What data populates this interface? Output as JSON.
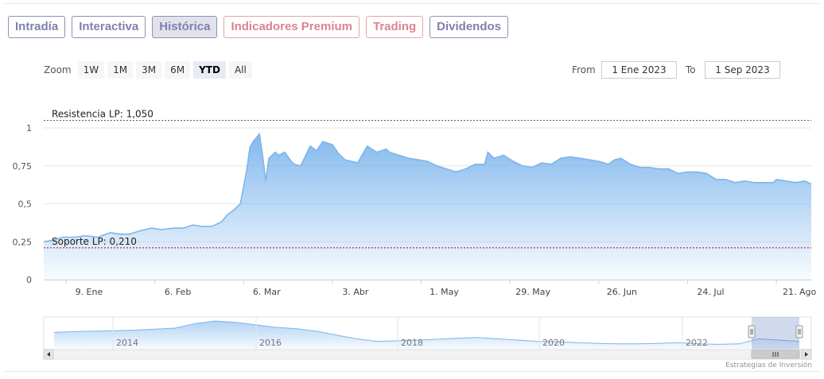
{
  "tabs": [
    {
      "label": "Intradía",
      "active": false,
      "premium": false
    },
    {
      "label": "Interactiva",
      "active": false,
      "premium": false
    },
    {
      "label": "Histórica",
      "active": true,
      "premium": false
    },
    {
      "label": "Indicadores Premium",
      "active": false,
      "premium": true
    },
    {
      "label": "Trading",
      "active": false,
      "premium": true
    },
    {
      "label": "Dividendos",
      "active": false,
      "premium": false
    }
  ],
  "zoom": {
    "label": "Zoom",
    "buttons": [
      "1W",
      "1M",
      "3M",
      "6M",
      "YTD",
      "All"
    ],
    "active": "YTD"
  },
  "range": {
    "from_label": "From",
    "from_value": "1 Ene 2023",
    "to_label": "To",
    "to_value": "1 Sep 2023"
  },
  "credits": "Estrategias de Inversión",
  "colors": {
    "series": "#7cb5ec",
    "resistance": "#2e7d32",
    "support": "#8b1a1a",
    "tab_border": "#8f8fb8",
    "premium_border": "#e8a3ab"
  },
  "chart_data": {
    "type": "area",
    "title": "",
    "xlabel": "",
    "ylabel": "",
    "ylim": [
      0,
      1
    ],
    "yticks": [
      0,
      0.25,
      0.5,
      0.75,
      1
    ],
    "ytick_labels": [
      "0",
      "0,25",
      "0,5",
      "0,75",
      "1"
    ],
    "xlim": [
      "2023-01-02",
      "2023-09-01"
    ],
    "x_ticks": [
      {
        "date": "2023-01-09",
        "label": "9. Ene"
      },
      {
        "date": "2023-02-06",
        "label": "6. Feb"
      },
      {
        "date": "2023-03-06",
        "label": "6. Mar"
      },
      {
        "date": "2023-04-03",
        "label": "3. Abr"
      },
      {
        "date": "2023-05-01",
        "label": "1. May"
      },
      {
        "date": "2023-05-29",
        "label": "29. May"
      },
      {
        "date": "2023-06-26",
        "label": "26. Jun"
      },
      {
        "date": "2023-07-24",
        "label": "24. Jul"
      },
      {
        "date": "2023-08-21",
        "label": "21. Ago"
      }
    ],
    "plot_lines": [
      {
        "label": "Resistencia LP: 1,050",
        "value": 1.05
      },
      {
        "label": "Soporte LP: 0,210",
        "value": 0.21
      }
    ],
    "series": [
      {
        "x": [
          "2023-01-02",
          "2023-01-05",
          "2023-01-08",
          "2023-01-12",
          "2023-01-15",
          "2023-01-19",
          "2023-01-23",
          "2023-01-26",
          "2023-01-29",
          "2023-02-01",
          "2023-02-05",
          "2023-02-08",
          "2023-02-12",
          "2023-02-15",
          "2023-02-18",
          "2023-02-21",
          "2023-02-24",
          "2023-02-27",
          "2023-03-01",
          "2023-03-03",
          "2023-03-05",
          "2023-03-07",
          "2023-03-08",
          "2023-03-09",
          "2023-03-11",
          "2023-03-12",
          "2023-03-13",
          "2023-03-14",
          "2023-03-16",
          "2023-03-17",
          "2023-03-19",
          "2023-03-21",
          "2023-03-22",
          "2023-03-24",
          "2023-03-27",
          "2023-03-29",
          "2023-03-31",
          "2023-04-03",
          "2023-04-05",
          "2023-04-07",
          "2023-04-09",
          "2023-04-11",
          "2023-04-14",
          "2023-04-17",
          "2023-04-20",
          "2023-04-21",
          "2023-04-24",
          "2023-04-27",
          "2023-04-30",
          "2023-05-03",
          "2023-05-06",
          "2023-05-09",
          "2023-05-12",
          "2023-05-15",
          "2023-05-18",
          "2023-05-21",
          "2023-05-22",
          "2023-05-24",
          "2023-05-27",
          "2023-05-30",
          "2023-06-02",
          "2023-06-05",
          "2023-06-08",
          "2023-06-11",
          "2023-06-14",
          "2023-06-17",
          "2023-06-20",
          "2023-06-23",
          "2023-06-26",
          "2023-06-29",
          "2023-07-01",
          "2023-07-03",
          "2023-07-06",
          "2023-07-09",
          "2023-07-12",
          "2023-07-15",
          "2023-07-18",
          "2023-07-21",
          "2023-07-24",
          "2023-07-27",
          "2023-07-30",
          "2023-08-02",
          "2023-08-05",
          "2023-08-08",
          "2023-08-11",
          "2023-08-14",
          "2023-08-17",
          "2023-08-20",
          "2023-08-21",
          "2023-08-24",
          "2023-08-27",
          "2023-08-30",
          "2023-09-01"
        ],
        "y": [
          0.25,
          0.26,
          0.28,
          0.28,
          0.29,
          0.28,
          0.31,
          0.3,
          0.3,
          0.32,
          0.34,
          0.33,
          0.34,
          0.34,
          0.36,
          0.35,
          0.35,
          0.38,
          0.43,
          0.46,
          0.5,
          0.72,
          0.87,
          0.91,
          0.96,
          0.82,
          0.65,
          0.8,
          0.84,
          0.82,
          0.84,
          0.78,
          0.76,
          0.75,
          0.88,
          0.85,
          0.91,
          0.89,
          0.83,
          0.79,
          0.78,
          0.77,
          0.88,
          0.84,
          0.86,
          0.84,
          0.82,
          0.8,
          0.79,
          0.78,
          0.75,
          0.73,
          0.71,
          0.73,
          0.76,
          0.76,
          0.84,
          0.8,
          0.82,
          0.78,
          0.75,
          0.74,
          0.77,
          0.76,
          0.8,
          0.81,
          0.8,
          0.79,
          0.78,
          0.76,
          0.79,
          0.8,
          0.76,
          0.74,
          0.74,
          0.73,
          0.73,
          0.7,
          0.71,
          0.71,
          0.7,
          0.66,
          0.66,
          0.64,
          0.65,
          0.64,
          0.64,
          0.64,
          0.66,
          0.65,
          0.64,
          0.65,
          0.63
        ]
      }
    ],
    "navigator": {
      "labels": [
        "2014",
        "2016",
        "2018",
        "2020",
        "2022"
      ],
      "values": [
        0.55,
        0.58,
        0.6,
        0.62,
        0.64,
        0.68,
        0.72,
        0.9,
        1.0,
        0.95,
        0.85,
        0.75,
        0.7,
        0.6,
        0.45,
        0.3,
        0.2,
        0.22,
        0.25,
        0.28,
        0.32,
        0.35,
        0.3,
        0.25,
        0.2,
        0.18,
        0.15,
        0.12,
        0.1,
        0.1,
        0.12,
        0.15,
        0.1,
        0.08,
        0.1,
        0.3,
        0.25,
        0.2
      ]
    }
  }
}
